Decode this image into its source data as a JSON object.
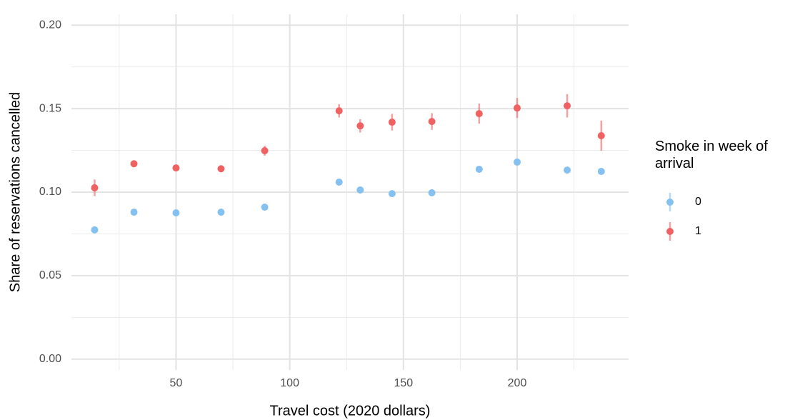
{
  "chart_data": {
    "type": "scatter",
    "x_label": "Travel cost (2020 dollars)",
    "y_label": "Share of reservations cancelled",
    "legend_title": "Smoke in week of arrival",
    "legend_position": "right",
    "grid": true,
    "x": [
      14.2,
      31.5,
      50,
      69.8,
      89,
      121.7,
      131,
      145,
      162.5,
      183.3,
      200,
      222,
      237
    ],
    "series": [
      {
        "name": "0",
        "color": "#85c1f0",
        "values": [
          0.0774,
          0.088,
          0.0876,
          0.088,
          0.091,
          0.106,
          0.1013,
          0.0991,
          0.0996,
          0.1137,
          0.118,
          0.1132,
          0.1124
        ],
        "errors": [
          0.0008,
          0.0008,
          0.0008,
          0.0008,
          0.0009,
          0.001,
          0.001,
          0.001,
          0.001,
          0.0012,
          0.0012,
          0.0012,
          0.0014
        ]
      },
      {
        "name": "1",
        "color": "#f06262",
        "values": [
          0.1026,
          0.117,
          0.1145,
          0.114,
          0.1248,
          0.1487,
          0.1397,
          0.1419,
          0.1423,
          0.147,
          0.1504,
          0.1517,
          0.1338
        ],
        "errors": [
          0.005,
          0.002,
          0.002,
          0.002,
          0.003,
          0.004,
          0.004,
          0.005,
          0.005,
          0.006,
          0.006,
          0.007,
          0.009
        ]
      }
    ],
    "xlim": [
      4,
      249
    ],
    "ylim": [
      -0.0065,
      0.2065
    ],
    "xticks": [
      50,
      100,
      150,
      200
    ],
    "x_minor_ticks": [
      25,
      75,
      125,
      175,
      225
    ],
    "yticks": [
      {
        "value": 0,
        "label": "0.00"
      },
      {
        "value": 0.05,
        "label": "0.05"
      },
      {
        "value": 0.1,
        "label": "0.10"
      },
      {
        "value": 0.15,
        "label": "0.15"
      },
      {
        "value": 0.2,
        "label": "0.20"
      }
    ],
    "y_minor_ticks": [
      0.025,
      0.075,
      0.125,
      0.175
    ]
  }
}
